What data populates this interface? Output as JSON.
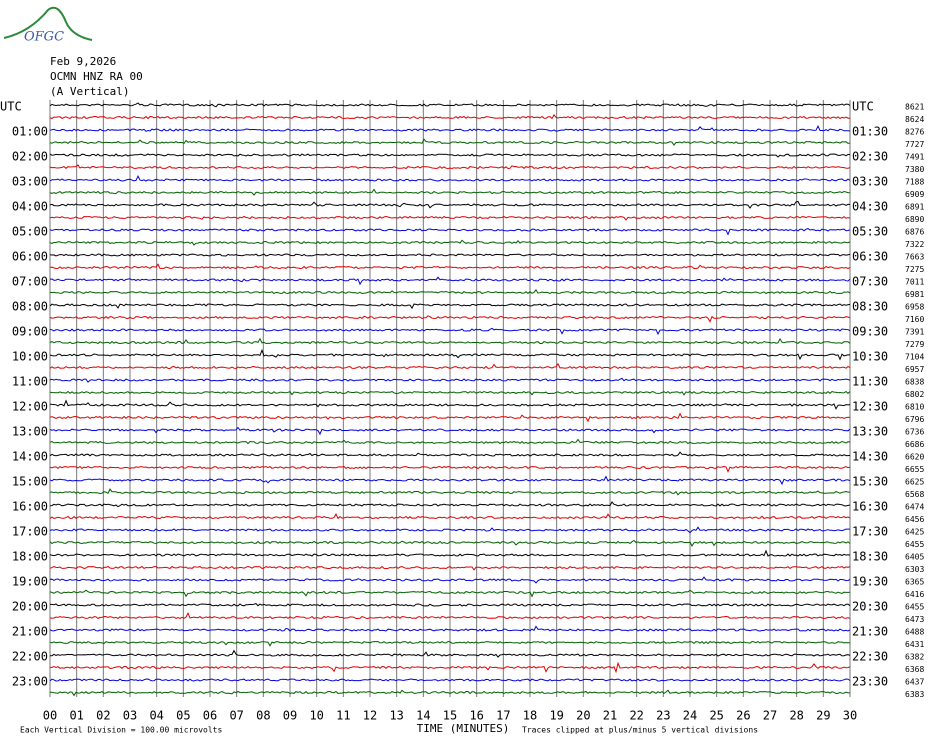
{
  "logo": "OFGC",
  "header": {
    "date": "Feb 9,2026",
    "station": "OCMN HNZ RA 00",
    "component": "(A Vertical)"
  },
  "left_labels": [
    "UTC",
    "01:00",
    "02:00",
    "03:00",
    "04:00",
    "05:00",
    "06:00",
    "07:00",
    "08:00",
    "09:00",
    "10:00",
    "11:00",
    "12:00",
    "13:00",
    "14:00",
    "15:00",
    "16:00",
    "17:00",
    "18:00",
    "19:00",
    "20:00",
    "21:00",
    "22:00",
    "23:00"
  ],
  "right_labels": [
    "UTC",
    "01:30",
    "02:30",
    "03:30",
    "04:30",
    "05:30",
    "06:30",
    "07:30",
    "08:30",
    "09:30",
    "10:30",
    "11:30",
    "12:30",
    "13:30",
    "14:30",
    "15:30",
    "16:30",
    "17:30",
    "18:30",
    "19:30",
    "20:30",
    "21:30",
    "22:30",
    "23:30"
  ],
  "trace_levels": [
    "8621",
    "8624",
    "8276",
    "7727",
    "7491",
    "7380",
    "7188",
    "6909",
    "6891",
    "6890",
    "6876",
    "7322",
    "7663",
    "7275",
    "7011",
    "6981",
    "6958",
    "7160",
    "7391",
    "7279",
    "7104",
    "6957",
    "6838",
    "6802",
    "6810",
    "6796",
    "6736",
    "6686",
    "6620",
    "6655",
    "6625",
    "6568",
    "6474",
    "6456",
    "6425",
    "6455",
    "6405",
    "6303",
    "6365",
    "6416",
    "6455",
    "6473",
    "6488",
    "6431",
    "6382",
    "6368",
    "6437",
    "6383"
  ],
  "trace_colors": [
    "#000000",
    "#e00000",
    "#0000e0",
    "#006000"
  ],
  "xlim": [
    0,
    30
  ],
  "xticks": [
    {
      "value": 0,
      "label": "00"
    },
    {
      "value": 1,
      "label": "01"
    },
    {
      "value": 2,
      "label": "02"
    },
    {
      "value": 3,
      "label": "03"
    },
    {
      "value": 4,
      "label": "04"
    },
    {
      "value": 5,
      "label": "05"
    },
    {
      "value": 6,
      "label": "06"
    },
    {
      "value": 7,
      "label": "07"
    },
    {
      "value": 8,
      "label": "08"
    },
    {
      "value": 9,
      "label": "09"
    },
    10,
    11,
    12,
    13,
    14,
    15,
    16,
    17,
    18,
    19,
    20,
    21,
    22,
    23,
    24,
    25,
    26,
    27,
    28,
    29,
    30
  ],
  "footer": {
    "scale": "Each Vertical Division =  100.00 microvolts",
    "xlabel": "TIME (MINUTES)",
    "clip": "Traces clipped at plus/minus 5 vertical divisions"
  }
}
